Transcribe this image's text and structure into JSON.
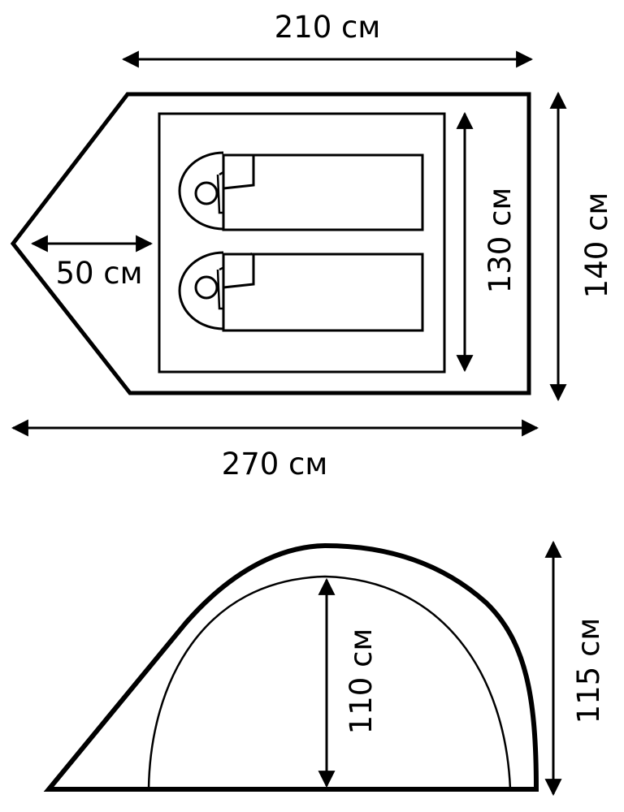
{
  "floor_plan": {
    "labels": {
      "inner_length": "210 см",
      "total_length": "270 см",
      "vestibule_depth": "50 см",
      "inner_width": "130 см",
      "total_width": "140 см"
    },
    "sleeping_places": 2
  },
  "side_view": {
    "labels": {
      "inner_height": "110 см",
      "total_height": "115 см"
    }
  },
  "colors": {
    "line": "#000000",
    "background": "#ffffff"
  }
}
